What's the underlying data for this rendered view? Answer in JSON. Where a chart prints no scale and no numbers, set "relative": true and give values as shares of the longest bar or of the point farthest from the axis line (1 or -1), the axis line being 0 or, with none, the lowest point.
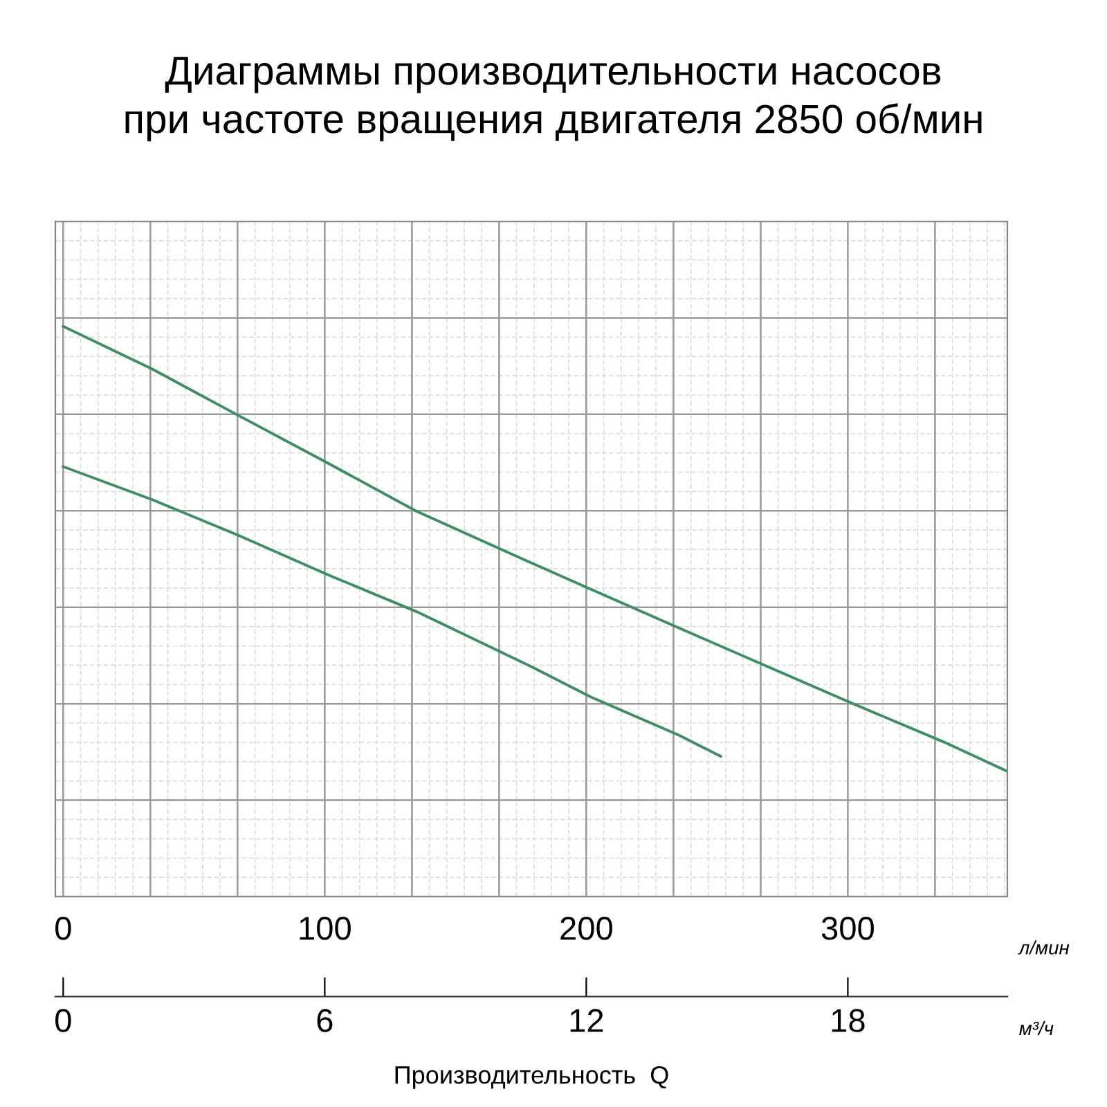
{
  "chart_data": {
    "type": "line",
    "title": "Диаграммы производительности насосов\nпри частоте вращения двигателя 2850 об/мин",
    "xlabel": "Производительность  Q",
    "relative": true,
    "xlim": [
      -3,
      361
    ],
    "xticks": [
      0,
      100,
      200,
      300
    ],
    "x2lim": [
      -0.18,
      21.66
    ],
    "x2ticks": [
      0,
      6,
      12,
      18
    ],
    "annotations": [
      "л/мин",
      "м³/ч"
    ],
    "series": [
      {
        "color": "#3d8f63",
        "x": [
          0,
          34.1,
          67.3,
          100.9,
          135,
          179.1,
          201.8,
          235.5,
          269.5,
          303.2,
          336.8,
          360.9
        ],
        "values": [
          1.0,
          0.925,
          0.843,
          0.761,
          0.676,
          0.585,
          0.539,
          0.471,
          0.403,
          0.336,
          0.271,
          0.22
        ]
      },
      {
        "color": "#3d8f63",
        "x": [
          0,
          34.1,
          67.3,
          100.9,
          135,
          179.1,
          201.8,
          235.5,
          251.4
        ],
        "values": [
          0.754,
          0.696,
          0.633,
          0.565,
          0.5,
          0.403,
          0.35,
          0.283,
          0.246
        ]
      }
    ],
    "grid": true,
    "marker": "none",
    "line_style": "solid"
  }
}
